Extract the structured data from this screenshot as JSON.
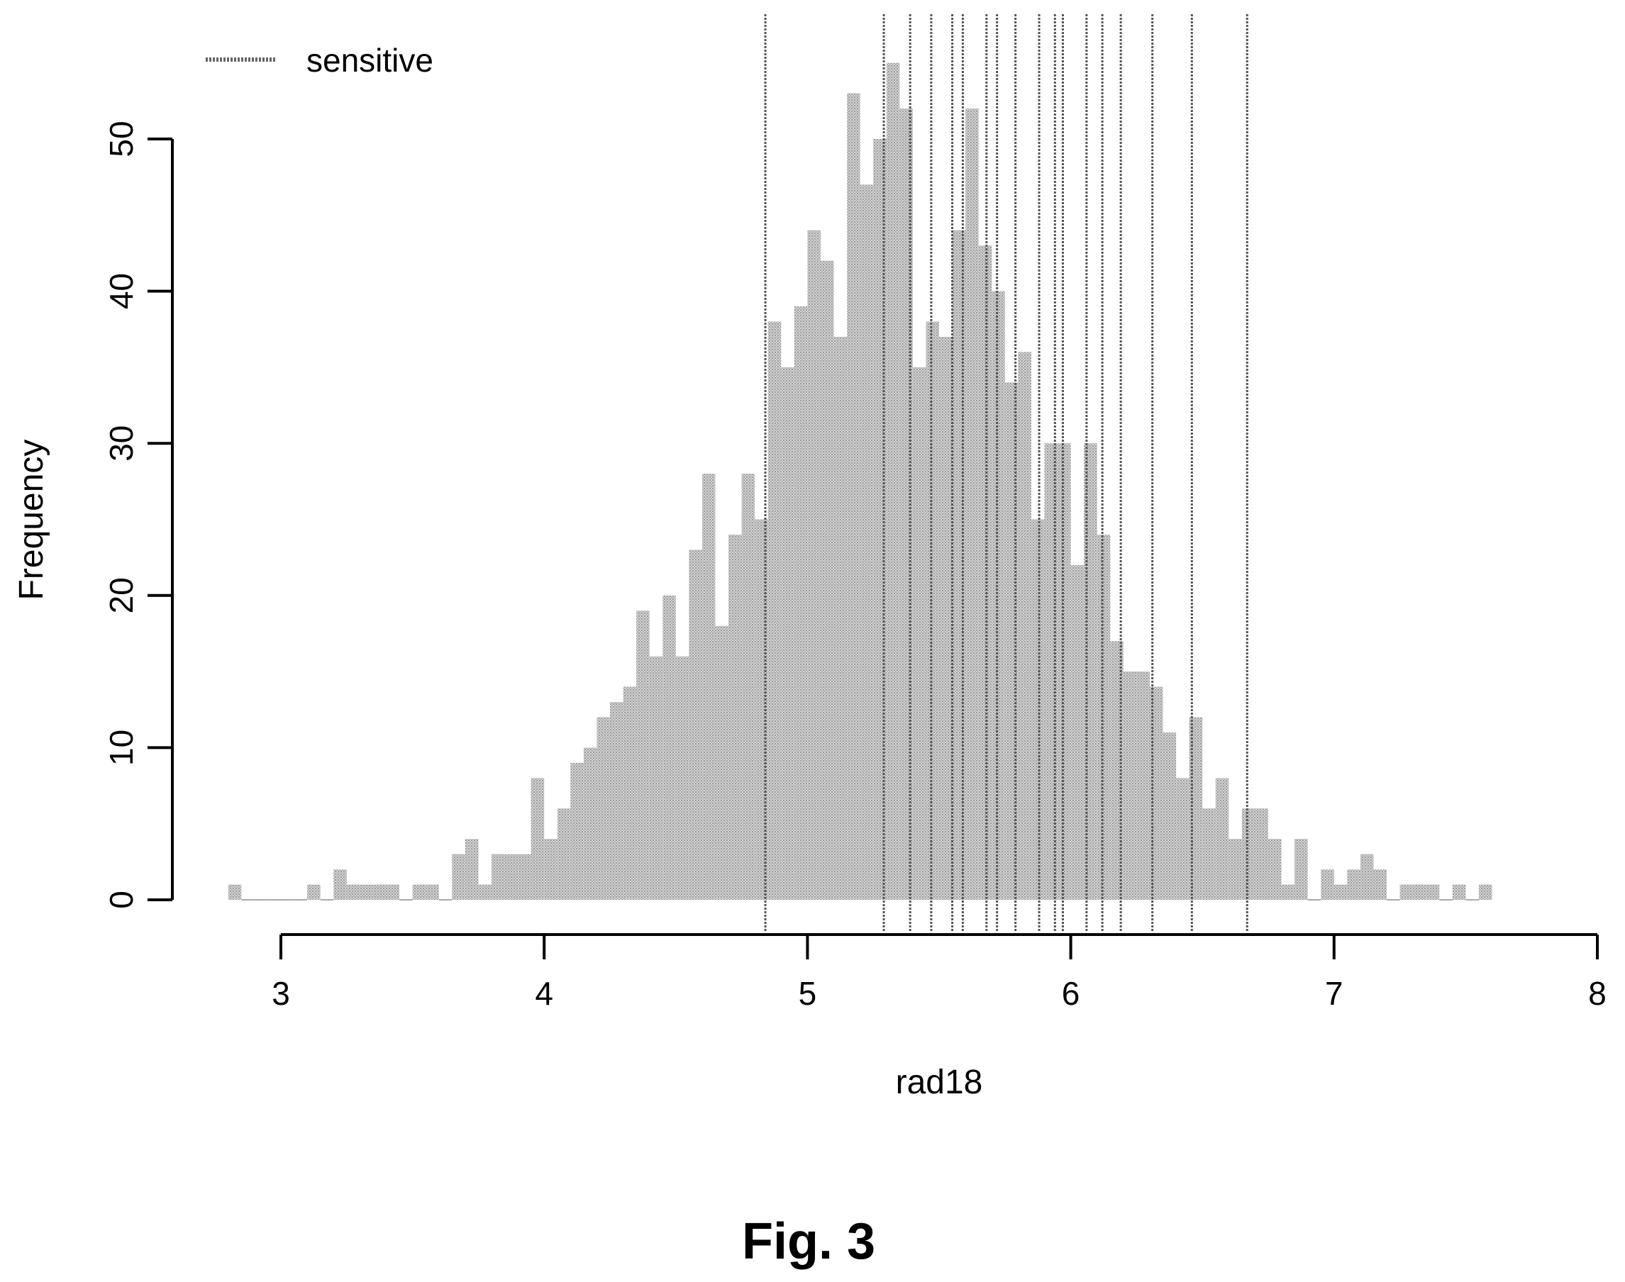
{
  "chart_data": {
    "type": "histogram",
    "title": "",
    "xlabel": "rad18",
    "ylabel": "Frequency",
    "xlim": [
      3,
      8
    ],
    "ylim": [
      0,
      50
    ],
    "x_ticks": [
      "3",
      "4",
      "5",
      "6",
      "7",
      "8"
    ],
    "y_ticks": [
      "0",
      "10",
      "20",
      "30",
      "40",
      "50"
    ],
    "bin_width": 0.05,
    "bin_start": 2.8,
    "counts": [
      1,
      0,
      0,
      0,
      0,
      0,
      1,
      0,
      2,
      1,
      1,
      1,
      1,
      0,
      1,
      1,
      0,
      3,
      4,
      1,
      3,
      3,
      3,
      8,
      4,
      6,
      9,
      10,
      12,
      13,
      14,
      19,
      16,
      20,
      16,
      23,
      28,
      18,
      24,
      28,
      25,
      38,
      35,
      39,
      44,
      42,
      37,
      53,
      47,
      50,
      55,
      52,
      35,
      38,
      37,
      44,
      52,
      43,
      40,
      34,
      36,
      25,
      30,
      30,
      22,
      30,
      24,
      17,
      15,
      15,
      14,
      11,
      8,
      12,
      6,
      8,
      4,
      6,
      6,
      4,
      1,
      4,
      0,
      2,
      1,
      2,
      3,
      2,
      0,
      1,
      1,
      1,
      0,
      1,
      0,
      1
    ],
    "sensitive_lines": [
      4.84,
      5.29,
      5.39,
      5.47,
      5.55,
      5.59,
      5.68,
      5.72,
      5.79,
      5.88,
      5.94,
      5.97,
      6.06,
      6.12,
      6.19,
      6.31,
      6.46,
      6.67
    ],
    "legend": {
      "label": "sensitive",
      "position": "top-left"
    },
    "grid": false,
    "colors": {
      "bars": "#c4c4c4",
      "lines": "#555555",
      "axis": "#000000"
    }
  },
  "caption": "Fig. 3"
}
